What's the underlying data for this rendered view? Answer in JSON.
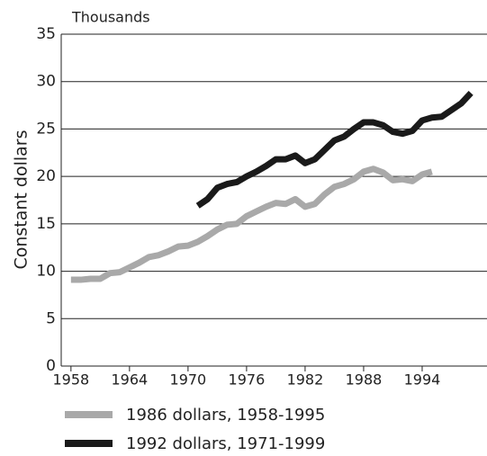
{
  "chart_data": {
    "type": "line",
    "annotation": "Thousands",
    "y_label": "Constant dollars",
    "xlim": [
      1957,
      2000
    ],
    "xticks": [
      1958,
      1964,
      1970,
      1976,
      1982,
      1988,
      1994
    ],
    "ylim": [
      0,
      35
    ],
    "yticks": [
      0,
      5,
      10,
      15,
      20,
      25,
      30,
      35
    ],
    "grid": true,
    "legend": "bottom",
    "series": [
      {
        "name": "1986 dollars, 1958-1995",
        "color": "#a9a9a9",
        "x": [
          1958,
          1959,
          1960,
          1961,
          1962,
          1963,
          1964,
          1965,
          1966,
          1967,
          1968,
          1969,
          1970,
          1971,
          1972,
          1973,
          1974,
          1975,
          1976,
          1977,
          1978,
          1979,
          1980,
          1981,
          1982,
          1983,
          1984,
          1985,
          1986,
          1987,
          1988,
          1989,
          1990,
          1991,
          1992,
          1993,
          1994,
          1995
        ],
        "values": [
          9.1,
          9.1,
          9.2,
          9.2,
          9.8,
          9.9,
          10.4,
          10.9,
          11.5,
          11.7,
          12.1,
          12.6,
          12.7,
          13.1,
          13.7,
          14.4,
          14.9,
          15.0,
          15.8,
          16.3,
          16.8,
          17.2,
          17.1,
          17.6,
          16.8,
          17.1,
          18.1,
          18.9,
          19.2,
          19.7,
          20.5,
          20.8,
          20.4,
          19.6,
          19.7,
          19.5,
          20.2,
          20.5
        ]
      },
      {
        "name": "1992 dollars, 1971-1999",
        "color": "#1a1a1a",
        "x": [
          1971,
          1972,
          1973,
          1974,
          1975,
          1976,
          1977,
          1978,
          1979,
          1980,
          1981,
          1982,
          1983,
          1984,
          1985,
          1986,
          1987,
          1988,
          1989,
          1990,
          1991,
          1992,
          1993,
          1994,
          1995,
          1996,
          1997,
          1998,
          1999
        ],
        "values": [
          16.9,
          17.6,
          18.8,
          19.2,
          19.4,
          20.0,
          20.5,
          21.1,
          21.8,
          21.8,
          22.2,
          21.4,
          21.8,
          22.8,
          23.8,
          24.2,
          25.0,
          25.7,
          25.7,
          25.4,
          24.7,
          24.5,
          24.8,
          25.9,
          26.2,
          26.3,
          27.0,
          27.7,
          28.8
        ]
      }
    ]
  }
}
